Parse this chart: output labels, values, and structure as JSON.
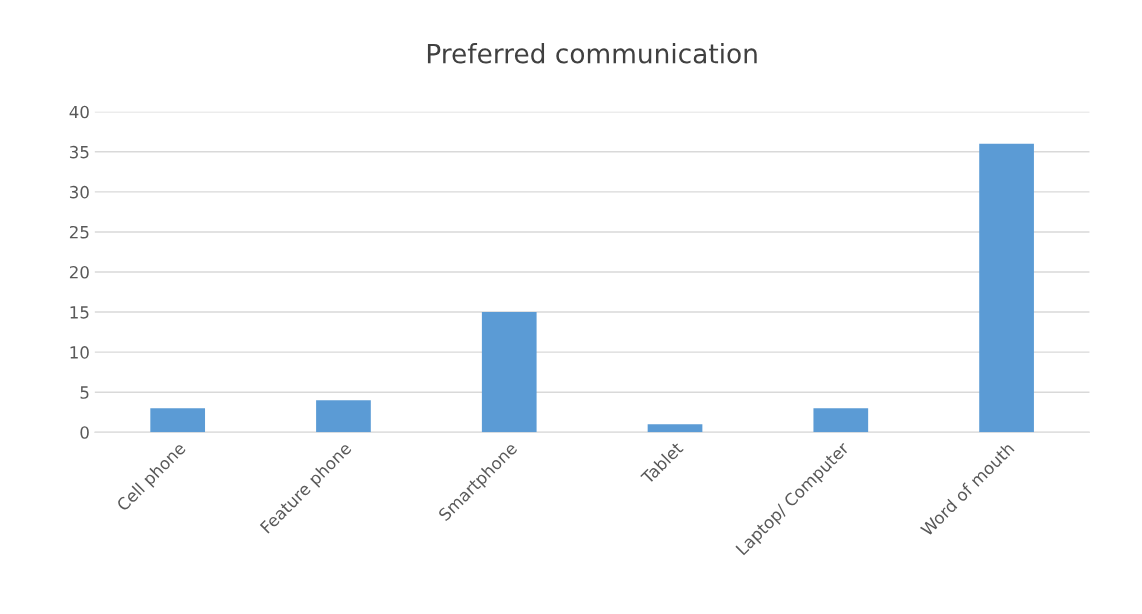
{
  "chart_data": {
    "type": "bar",
    "title": "Preferred communication",
    "categories": [
      "Cell phone",
      "Feature phone",
      "Smartphone",
      "Tablet",
      "Laptop/ Computer",
      "Word of mouth"
    ],
    "values": [
      3,
      4,
      15,
      1,
      3,
      36
    ],
    "color": "#5b9bd5",
    "ylim": [
      0,
      40
    ],
    "yticks": [
      0,
      5,
      10,
      15,
      20,
      25,
      30,
      35,
      40
    ],
    "grid": "y",
    "legend": false
  }
}
